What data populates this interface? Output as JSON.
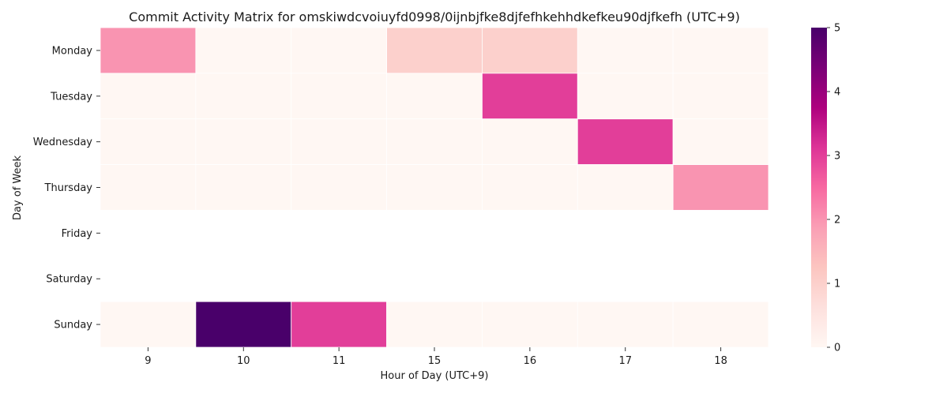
{
  "chart_data": {
    "type": "heatmap",
    "title": "Commit Activity Matrix for omskiwdcvoiuyfd0998/0ijnbjfke8djfefhkehhdkefkeu90djfkefh (UTC+9)",
    "xlabel": "Hour of Day (UTC+9)",
    "ylabel": "Day of Week",
    "x_categories": [
      "9",
      "10",
      "11",
      "15",
      "16",
      "17",
      "18"
    ],
    "y_categories": [
      "Monday",
      "Tuesday",
      "Wednesday",
      "Thursday",
      "Friday",
      "Saturday",
      "Sunday"
    ],
    "values": [
      [
        2,
        0,
        0,
        1,
        1,
        0,
        0
      ],
      [
        0,
        0,
        0,
        0,
        3,
        0,
        0
      ],
      [
        0,
        0,
        0,
        0,
        0,
        3,
        0
      ],
      [
        0,
        0,
        0,
        0,
        0,
        0,
        2
      ],
      [
        null,
        null,
        null,
        null,
        null,
        null,
        null
      ],
      [
        null,
        null,
        null,
        null,
        null,
        null,
        null
      ],
      [
        0,
        5,
        3,
        0,
        0,
        0,
        0
      ]
    ],
    "colorbar": {
      "min": 0,
      "max": 5,
      "ticks": [
        "0",
        "1",
        "2",
        "3",
        "4",
        "5"
      ]
    },
    "colormap_stops": [
      "#fff7f3",
      "#fde0dd",
      "#fcc5c0",
      "#fa9fb5",
      "#f768a1",
      "#dd3497",
      "#ae017e",
      "#7a0177",
      "#49006a"
    ]
  }
}
